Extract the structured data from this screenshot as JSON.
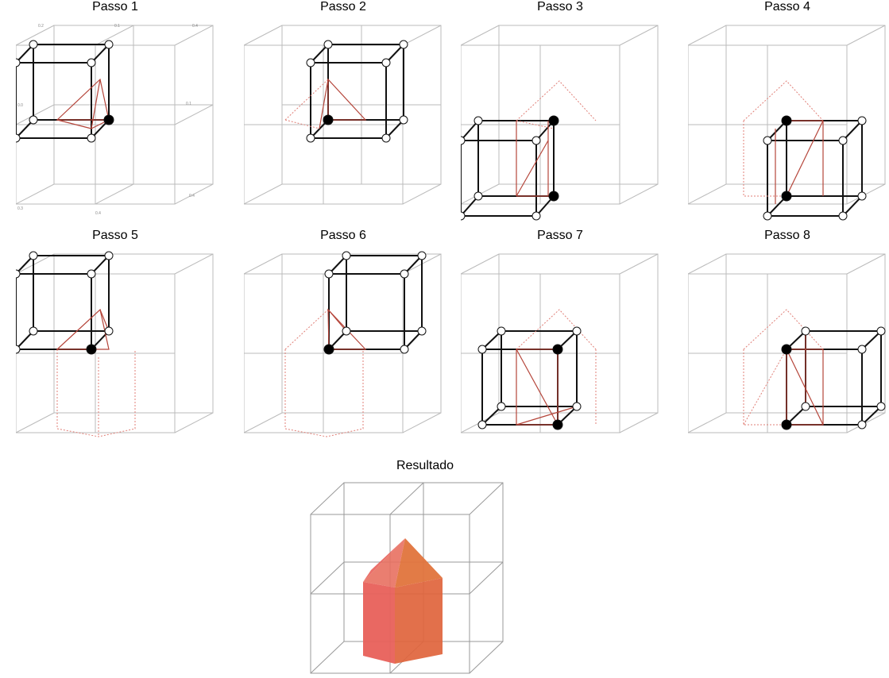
{
  "steps": [
    {
      "title": "Passo 1"
    },
    {
      "title": "Passo 2"
    },
    {
      "title": "Passo 3"
    },
    {
      "title": "Passo 4"
    },
    {
      "title": "Passo 5"
    },
    {
      "title": "Passo 6"
    },
    {
      "title": "Passo 7"
    },
    {
      "title": "Passo 8"
    }
  ],
  "result": {
    "title": "Resultado"
  },
  "colors": {
    "grid": "#aaaaaa",
    "cube": "#111111",
    "active": "#b5453a",
    "inactive": "#e07f77",
    "fillA": "#e8605a",
    "fillB": "#e0743c"
  }
}
